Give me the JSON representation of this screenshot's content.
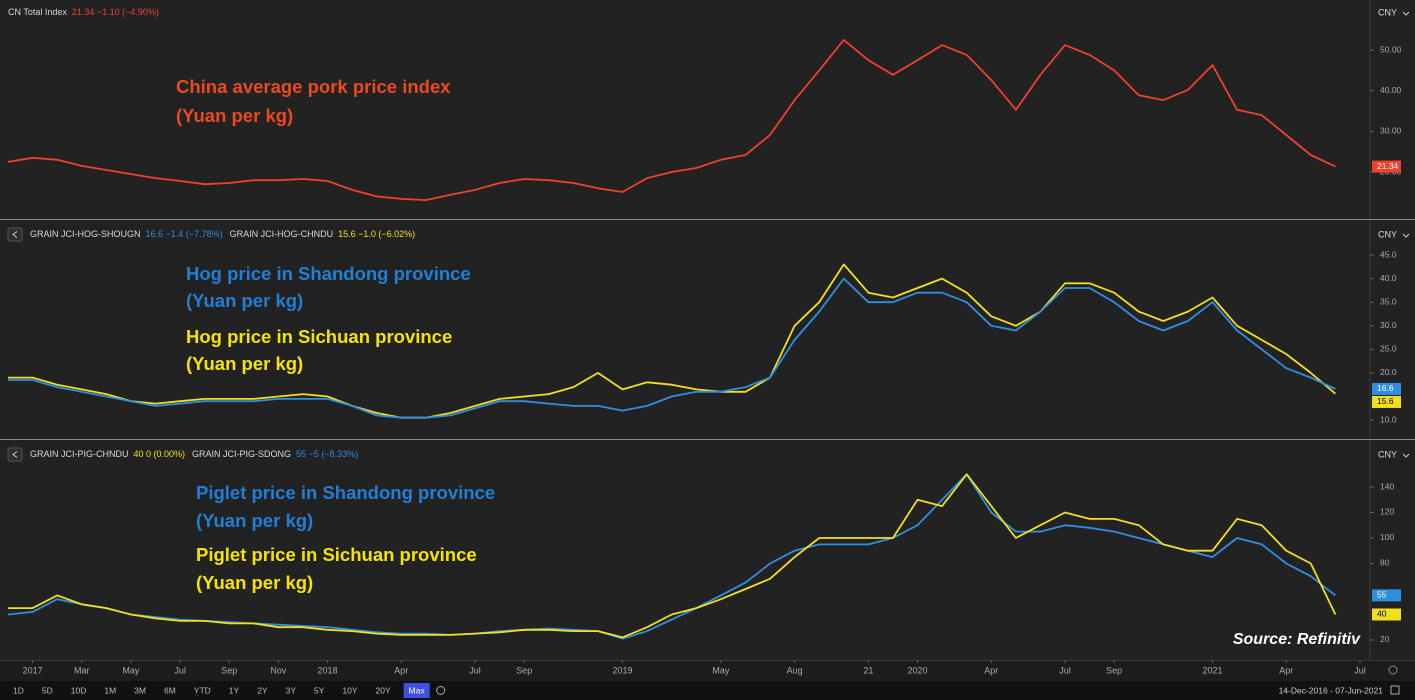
{
  "chart_data": [
    {
      "type": "line",
      "currency": "CNY",
      "xlim": [
        "2016-12",
        "2021-07"
      ],
      "ylim": [
        8.7,
        62.3
      ],
      "yticks": [
        {
          "value": 50,
          "label": "50.00"
        },
        {
          "value": 40,
          "label": "40.00"
        },
        {
          "value": 30,
          "label": "30.00"
        },
        {
          "value": 20,
          "label": "20.00"
        }
      ],
      "x": [
        "2016-12",
        "2017-01",
        "2017-02",
        "2017-03",
        "2017-04",
        "2017-05",
        "2017-06",
        "2017-07",
        "2017-08",
        "2017-09",
        "2017-10",
        "2017-11",
        "2017-12",
        "2018-01",
        "2018-02",
        "2018-03",
        "2018-04",
        "2018-05",
        "2018-06",
        "2018-07",
        "2018-08",
        "2018-09",
        "2018-10",
        "2018-11",
        "2018-12",
        "2019-01",
        "2019-02",
        "2019-03",
        "2019-04",
        "2019-05",
        "2019-06",
        "2019-07",
        "2019-08",
        "2019-09",
        "2019-10",
        "2019-11",
        "2019-12",
        "2020-01",
        "2020-02",
        "2020-03",
        "2020-04",
        "2020-05",
        "2020-06",
        "2020-07",
        "2020-08",
        "2020-09",
        "2020-10",
        "2020-11",
        "2020-12",
        "2021-01",
        "2021-02",
        "2021-03",
        "2021-04",
        "2021-05",
        "2021-06"
      ],
      "series": [
        {
          "name": "CN Total Index",
          "quote": "21.34 −1.10 (−4.90%)",
          "color": "#f0402e",
          "values": [
            22.5,
            23.5,
            23,
            21.5,
            20.5,
            19.5,
            18.5,
            17.8,
            17,
            17.3,
            18,
            18,
            18.3,
            17.8,
            15.6,
            14,
            13.4,
            13.1,
            14.4,
            15.6,
            17.3,
            18.3,
            18,
            17.3,
            16,
            15.1,
            18.5,
            20,
            21,
            23,
            24.2,
            29.1,
            37.7,
            45,
            52.5,
            47.5,
            43.9,
            47.5,
            51.2,
            48.8,
            42.6,
            35.3,
            43.9,
            51.2,
            48.8,
            45,
            38.9,
            37.7,
            40.2,
            46.3,
            35.3,
            34,
            29.1,
            24.2,
            21.34
          ]
        }
      ],
      "annotations": [
        {
          "color": "#ea4a1e",
          "lines": [
            "China average pork price index",
            "(Yuan per kg)"
          ]
        }
      ]
    },
    {
      "type": "line",
      "currency": "CNY",
      "xlim": [
        "2016-12",
        "2021-07"
      ],
      "ylim": [
        6.2,
        52
      ],
      "yticks": [
        {
          "value": 45,
          "label": "45.0"
        },
        {
          "value": 40,
          "label": "40.0"
        },
        {
          "value": 35,
          "label": "35.0"
        },
        {
          "value": 30,
          "label": "30.0"
        },
        {
          "value": 25,
          "label": "25.0"
        },
        {
          "value": 20,
          "label": "20.0"
        },
        {
          "value": 10,
          "label": "10.0"
        }
      ],
      "x": [
        "2016-12",
        "2017-01",
        "2017-02",
        "2017-03",
        "2017-04",
        "2017-05",
        "2017-06",
        "2017-07",
        "2017-08",
        "2017-09",
        "2017-10",
        "2017-11",
        "2017-12",
        "2018-01",
        "2018-02",
        "2018-03",
        "2018-04",
        "2018-05",
        "2018-06",
        "2018-07",
        "2018-08",
        "2018-09",
        "2018-10",
        "2018-11",
        "2018-12",
        "2019-01",
        "2019-02",
        "2019-03",
        "2019-04",
        "2019-05",
        "2019-06",
        "2019-07",
        "2019-08",
        "2019-09",
        "2019-10",
        "2019-11",
        "2019-12",
        "2020-01",
        "2020-02",
        "2020-03",
        "2020-04",
        "2020-05",
        "2020-06",
        "2020-07",
        "2020-08",
        "2020-09",
        "2020-10",
        "2020-11",
        "2020-12",
        "2021-01",
        "2021-02",
        "2021-03",
        "2021-04",
        "2021-05",
        "2021-06"
      ],
      "series": [
        {
          "name": "GRAIN JCI-HOG-SHOUGN",
          "quote": "16.6 −1.4 (−7.78%)",
          "color": "#2f8fe0",
          "values": [
            18.5,
            18.5,
            17,
            16,
            15,
            14,
            13,
            13.5,
            14,
            14,
            14,
            14.5,
            14.5,
            14.5,
            13,
            11,
            10.5,
            10.5,
            11,
            12.5,
            14,
            14,
            13.5,
            13,
            13,
            12,
            13,
            15,
            16,
            16,
            17,
            19,
            27,
            33,
            40,
            35,
            35,
            37,
            37,
            35,
            30,
            29,
            33,
            38,
            38,
            35,
            31,
            29,
            31,
            35,
            29,
            25,
            21,
            19,
            16.6
          ]
        },
        {
          "name": "GRAIN JCI-HOG-CHNDU",
          "quote": "15.6 −1.0 (−6.02%)",
          "color": "#f2e020",
          "values": [
            19,
            19,
            17.5,
            16.5,
            15.5,
            14,
            13.5,
            14,
            14.5,
            14.5,
            14.5,
            15,
            15.5,
            15,
            13,
            11.5,
            10.5,
            10.5,
            11.5,
            13,
            14.5,
            15,
            15.5,
            17,
            20,
            16.5,
            18,
            17.5,
            16.5,
            16,
            16,
            19,
            30,
            35,
            43,
            37,
            36,
            38,
            40,
            37,
            32,
            30,
            33,
            39,
            39,
            37,
            33,
            31,
            33,
            36,
            30,
            27,
            24,
            20,
            15.6
          ]
        }
      ],
      "annotations": [
        {
          "color": "#1f80d6",
          "lines": [
            "Hog price in Shandong province",
            "(Yuan per kg)"
          ]
        },
        {
          "color": "#f5e400",
          "lines": [
            "Hog price in Sichuan province",
            "(Yuan per kg)"
          ]
        }
      ]
    },
    {
      "type": "line",
      "currency": "CNY",
      "xlim": [
        "2016-12",
        "2021-07"
      ],
      "ylim": [
        4.3,
        175.3
      ],
      "yticks": [
        140,
        120,
        100,
        80,
        20
      ],
      "x": [
        "2016-12",
        "2017-01",
        "2017-02",
        "2017-03",
        "2017-04",
        "2017-05",
        "2017-06",
        "2017-07",
        "2017-08",
        "2017-09",
        "2017-10",
        "2017-11",
        "2017-12",
        "2018-01",
        "2018-02",
        "2018-03",
        "2018-04",
        "2018-05",
        "2018-06",
        "2018-07",
        "2018-08",
        "2018-09",
        "2018-10",
        "2018-11",
        "2018-12",
        "2019-01",
        "2019-02",
        "2019-03",
        "2019-04",
        "2019-05",
        "2019-06",
        "2019-07",
        "2019-08",
        "2019-09",
        "2019-10",
        "2019-11",
        "2019-12",
        "2020-01",
        "2020-02",
        "2020-03",
        "2020-04",
        "2020-05",
        "2020-06",
        "2020-07",
        "2020-08",
        "2020-09",
        "2020-10",
        "2020-11",
        "2020-12",
        "2021-01",
        "2021-02",
        "2021-03",
        "2021-04",
        "2021-05",
        "2021-06"
      ],
      "xticks": [
        {
          "value": "2017-01",
          "label": "2017"
        },
        {
          "value": "2017-03",
          "label": "Mar"
        },
        {
          "value": "2017-05",
          "label": "May"
        },
        {
          "value": "2017-07",
          "label": "Jul"
        },
        {
          "value": "2017-09",
          "label": "Sep"
        },
        {
          "value": "2017-11",
          "label": "Nov"
        },
        {
          "value": "2018-01",
          "label": "2018"
        },
        {
          "value": "2018-04",
          "label": "Apr"
        },
        {
          "value": "2018-07",
          "label": "Jul"
        },
        {
          "value": "2018-09",
          "label": "Sep"
        },
        {
          "value": "2019-01",
          "label": "2019"
        },
        {
          "value": "2019-05",
          "label": "May"
        },
        {
          "value": "2019-08",
          "label": "Aug"
        },
        {
          "value": "2019-11",
          "label": "21"
        },
        {
          "value": "2020-01",
          "label": "2020"
        },
        {
          "value": "2020-04",
          "label": "Apr"
        },
        {
          "value": "2020-07",
          "label": "Jul"
        },
        {
          "value": "2020-09",
          "label": "Sep"
        },
        {
          "value": "2021-01",
          "label": "2021"
        },
        {
          "value": "2021-04",
          "label": "Apr"
        },
        {
          "value": "2021-07",
          "label": "Jul"
        }
      ],
      "series": [
        {
          "name": "GRAIN JCI-PIG-CHNDU",
          "quote": "40 0 (0.00%)",
          "color": "#f2e020",
          "values": [
            45,
            45,
            55,
            48,
            45,
            40,
            37,
            35,
            35,
            33,
            33,
            30,
            30,
            28,
            27,
            25,
            24,
            24,
            24,
            25,
            26,
            28,
            28,
            27,
            27,
            22,
            30,
            40,
            45,
            52,
            60,
            68,
            85,
            100,
            100,
            100,
            100,
            130,
            125,
            150,
            125,
            100,
            110,
            120,
            115,
            115,
            110,
            95,
            90,
            90,
            115,
            110,
            90,
            80,
            40
          ]
        },
        {
          "name": "GRAIN JCI-PIG-SDONG",
          "quote": "55 −5 (−8.33%)",
          "color": "#2f8fe0",
          "values": [
            40,
            42,
            52,
            48,
            45,
            40,
            38,
            36,
            35,
            34,
            33,
            32,
            31,
            30,
            28,
            26,
            25,
            25,
            24,
            25,
            27,
            28,
            29,
            28,
            27,
            21,
            27,
            36,
            45,
            55,
            65,
            80,
            90,
            95,
            95,
            95,
            100,
            110,
            130,
            150,
            120,
            105,
            105,
            110,
            108,
            105,
            100,
            95,
            90,
            85,
            100,
            95,
            80,
            70,
            55
          ]
        }
      ],
      "annotations": [
        {
          "color": "#1f80d6",
          "lines": [
            "Piglet price in Shandong province",
            "(Yuan per kg)"
          ]
        },
        {
          "color": "#f5e400",
          "lines": [
            "Piglet price in Sichuan province",
            "(Yuan per kg)"
          ]
        }
      ]
    }
  ],
  "toolbar": {
    "ranges": [
      "1D",
      "5D",
      "10D",
      "1M",
      "3M",
      "6M",
      "YTD",
      "1Y",
      "2Y",
      "3Y",
      "5Y",
      "10Y",
      "20Y",
      "Max"
    ],
    "selected": "Max",
    "date_range": "14-Dec-2016 - 07-Jun-2021"
  },
  "source": "Source: Refinitiv"
}
